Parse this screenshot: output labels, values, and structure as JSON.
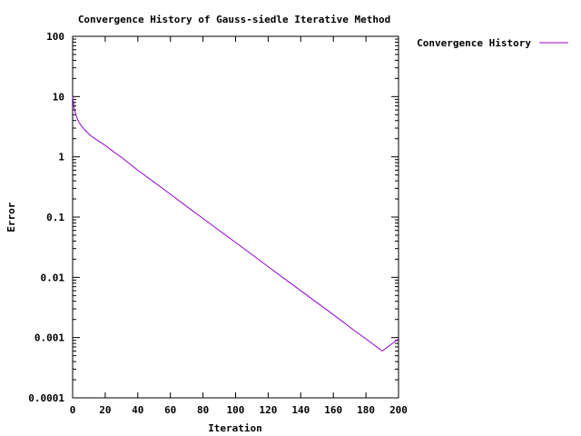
{
  "chart_data": {
    "type": "line",
    "title": "Convergence History of Gauss-siedle Iterative Method",
    "xlabel": "Iteration",
    "ylabel": "Error",
    "xlim": [
      0,
      200
    ],
    "ylim": [
      0.0001,
      100
    ],
    "yscale": "log",
    "x_ticks": [
      0,
      20,
      40,
      60,
      80,
      100,
      120,
      140,
      160,
      180,
      200
    ],
    "x_tick_labels": [
      "0",
      "20",
      "40",
      "60",
      "80",
      "100",
      "120",
      "140",
      "160",
      "180",
      "200"
    ],
    "y_ticks": [
      0.0001,
      0.001,
      0.01,
      0.1,
      1,
      10,
      100
    ],
    "y_tick_labels": [
      "0.0001",
      "0.001",
      "0.01",
      "0.1",
      "1",
      "10",
      "100"
    ],
    "grid": false,
    "legend_position": "outside-top-right",
    "series": [
      {
        "name": "Convergence History",
        "color": "#9400d3",
        "x": [
          0,
          1,
          2,
          3,
          4,
          6,
          8,
          10,
          12,
          15,
          18,
          20,
          25,
          30,
          40,
          50,
          60,
          70,
          80,
          90,
          100,
          110,
          120,
          130,
          140,
          150,
          160,
          170,
          180,
          190,
          200
        ],
        "y": [
          10,
          6.5,
          5,
          4.2,
          3.7,
          3.1,
          2.7,
          2.4,
          2.15,
          1.9,
          1.68,
          1.55,
          1.22,
          0.98,
          0.6,
          0.38,
          0.24,
          0.15,
          0.095,
          0.06,
          0.038,
          0.024,
          0.015,
          0.0095,
          0.006,
          0.0038,
          0.0024,
          0.0015,
          0.00095,
          0.0006,
          0.00095
        ]
      }
    ]
  }
}
